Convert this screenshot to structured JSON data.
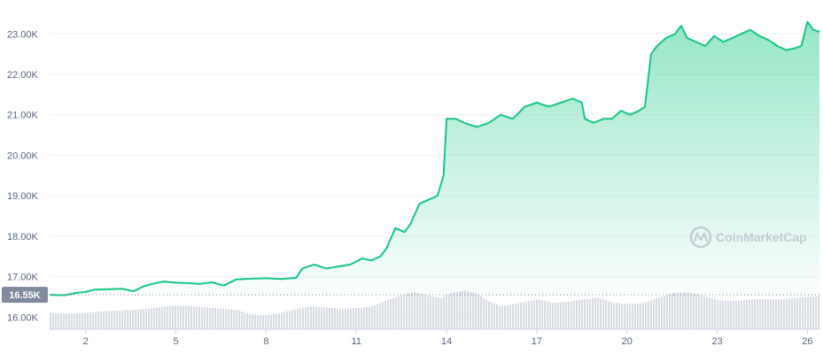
{
  "watermark": "CoinMarketCap",
  "chart_data": {
    "type": "area",
    "title": "",
    "xlabel": "",
    "ylabel": "",
    "ylim": [
      15700,
      23400
    ],
    "xlim": [
      0.8,
      26.4
    ],
    "y_ticks": [
      16000,
      17000,
      18000,
      19000,
      20000,
      21000,
      22000,
      23000
    ],
    "y_tick_labels": [
      "16.00K",
      "17.00K",
      "18.00K",
      "19.00K",
      "20.00K",
      "21.00K",
      "22.00K",
      "23.00K"
    ],
    "x_ticks": [
      2,
      5,
      8,
      11,
      14,
      17,
      20,
      23,
      26
    ],
    "x_tick_labels": [
      "2",
      "5",
      "8",
      "11",
      "14",
      "17",
      "20",
      "23",
      "26"
    ],
    "reference_value": 16550,
    "reference_label": "16.55K",
    "grid": true,
    "colors": {
      "line": "#16c784",
      "area_top": "#16c784",
      "volume": "#d7dbe2",
      "reference_badge": "#808a9d"
    },
    "series": [
      {
        "values_x": [
          0.8,
          1.3,
          1.7,
          2.0,
          2.3,
          2.8,
          3.2,
          3.6,
          3.9,
          4.2,
          4.6,
          5.0,
          5.4,
          5.8,
          6.2,
          6.6,
          7.0,
          7.5,
          8.0,
          8.5,
          9.0,
          9.2,
          9.6,
          10.0,
          10.4,
          10.8,
          11.2,
          11.5,
          11.8,
          12.0,
          12.3,
          12.6,
          12.8,
          13.1,
          13.4,
          13.7,
          13.9,
          14.0,
          14.3,
          14.6,
          15.0,
          15.4,
          15.8,
          16.2,
          16.6,
          17.0,
          17.4,
          17.8,
          18.2,
          18.5,
          18.6,
          18.9,
          19.2,
          19.5,
          19.8,
          20.1,
          20.4,
          20.6,
          20.8,
          21.0,
          21.3,
          21.6,
          21.8,
          22.0,
          22.3,
          22.6,
          22.9,
          23.2,
          23.5,
          23.8,
          24.1,
          24.4,
          24.7,
          25.0,
          25.3,
          25.6,
          25.8,
          26.0,
          26.2,
          26.4
        ],
        "values": [
          16550,
          16540,
          16600,
          16620,
          16680,
          16690,
          16700,
          16640,
          16750,
          16820,
          16880,
          16850,
          16840,
          16820,
          16860,
          16780,
          16930,
          16950,
          16960,
          16940,
          16970,
          17200,
          17300,
          17200,
          17250,
          17300,
          17450,
          17400,
          17500,
          17700,
          18200,
          18100,
          18300,
          18800,
          18900,
          19000,
          19500,
          20900,
          20900,
          20800,
          20700,
          20800,
          21000,
          20900,
          21200,
          21300,
          21200,
          21300,
          21400,
          21300,
          20900,
          20800,
          20900,
          20900,
          21100,
          21000,
          21100,
          21200,
          22500,
          22700,
          22900,
          23000,
          23200,
          22900,
          22800,
          22700,
          22950,
          22800,
          22900,
          23000,
          23100,
          22950,
          22850,
          22700,
          22600,
          22650,
          22700,
          23300,
          23100,
          23050
        ]
      }
    ],
    "volume": [
      {
        "x": 0.8,
        "v": 0.45
      },
      {
        "x": 1.5,
        "v": 0.42
      },
      {
        "x": 2.0,
        "v": 0.45
      },
      {
        "x": 2.5,
        "v": 0.48
      },
      {
        "x": 3.0,
        "v": 0.5
      },
      {
        "x": 3.5,
        "v": 0.52
      },
      {
        "x": 4.0,
        "v": 0.55
      },
      {
        "x": 4.5,
        "v": 0.6
      },
      {
        "x": 5.0,
        "v": 0.64
      },
      {
        "x": 5.5,
        "v": 0.62
      },
      {
        "x": 6.0,
        "v": 0.58
      },
      {
        "x": 6.5,
        "v": 0.56
      },
      {
        "x": 7.0,
        "v": 0.52
      },
      {
        "x": 7.5,
        "v": 0.4
      },
      {
        "x": 8.0,
        "v": 0.38
      },
      {
        "x": 8.5,
        "v": 0.45
      },
      {
        "x": 9.0,
        "v": 0.55
      },
      {
        "x": 9.5,
        "v": 0.62
      },
      {
        "x": 10.0,
        "v": 0.58
      },
      {
        "x": 10.5,
        "v": 0.56
      },
      {
        "x": 11.0,
        "v": 0.57
      },
      {
        "x": 11.5,
        "v": 0.62
      },
      {
        "x": 12.0,
        "v": 0.78
      },
      {
        "x": 12.5,
        "v": 0.92
      },
      {
        "x": 12.9,
        "v": 1.0
      },
      {
        "x": 13.3,
        "v": 0.92
      },
      {
        "x": 13.8,
        "v": 0.85
      },
      {
        "x": 14.2,
        "v": 1.0
      },
      {
        "x": 14.6,
        "v": 1.05
      },
      {
        "x": 15.0,
        "v": 0.95
      },
      {
        "x": 15.4,
        "v": 0.75
      },
      {
        "x": 15.8,
        "v": 0.62
      },
      {
        "x": 16.2,
        "v": 0.68
      },
      {
        "x": 16.6,
        "v": 0.75
      },
      {
        "x": 17.0,
        "v": 0.8
      },
      {
        "x": 17.5,
        "v": 0.72
      },
      {
        "x": 18.0,
        "v": 0.74
      },
      {
        "x": 18.5,
        "v": 0.8
      },
      {
        "x": 19.0,
        "v": 0.85
      },
      {
        "x": 19.5,
        "v": 0.72
      },
      {
        "x": 20.0,
        "v": 0.68
      },
      {
        "x": 20.5,
        "v": 0.7
      },
      {
        "x": 21.0,
        "v": 0.85
      },
      {
        "x": 21.5,
        "v": 0.98
      },
      {
        "x": 22.0,
        "v": 1.0
      },
      {
        "x": 22.5,
        "v": 0.9
      },
      {
        "x": 23.0,
        "v": 0.78
      },
      {
        "x": 23.5,
        "v": 0.76
      },
      {
        "x": 24.0,
        "v": 0.8
      },
      {
        "x": 24.5,
        "v": 0.82
      },
      {
        "x": 25.0,
        "v": 0.8
      },
      {
        "x": 25.5,
        "v": 0.85
      },
      {
        "x": 26.0,
        "v": 0.88
      },
      {
        "x": 26.4,
        "v": 0.9
      }
    ]
  }
}
